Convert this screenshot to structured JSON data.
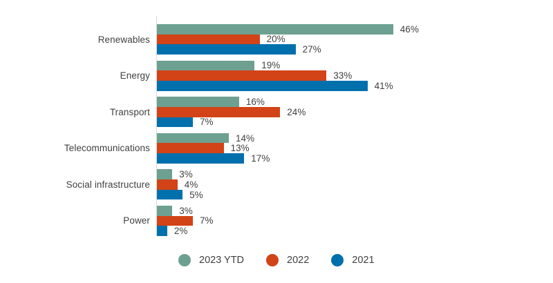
{
  "chart_data": {
    "type": "bar",
    "orientation": "horizontal",
    "title": "",
    "xlabel": "",
    "ylabel": "",
    "xlim": [
      0,
      50
    ],
    "grid": false,
    "value_suffix": "%",
    "legend_position": "bottom",
    "categories": [
      "Renewables",
      "Energy",
      "Transport",
      "Telecommunications",
      "Social infrastructure",
      "Power"
    ],
    "series": [
      {
        "name": "2023 YTD",
        "color": "#6da091",
        "values": [
          46,
          19,
          16,
          14,
          3,
          3
        ]
      },
      {
        "name": "2022",
        "color": "#d24317",
        "values": [
          20,
          33,
          24,
          13,
          4,
          7
        ]
      },
      {
        "name": "2021",
        "color": "#0070ad",
        "values": [
          27,
          41,
          7,
          17,
          5,
          2
        ]
      }
    ],
    "axis_line_color": "#d9d9d9",
    "label_color": "#404040"
  }
}
